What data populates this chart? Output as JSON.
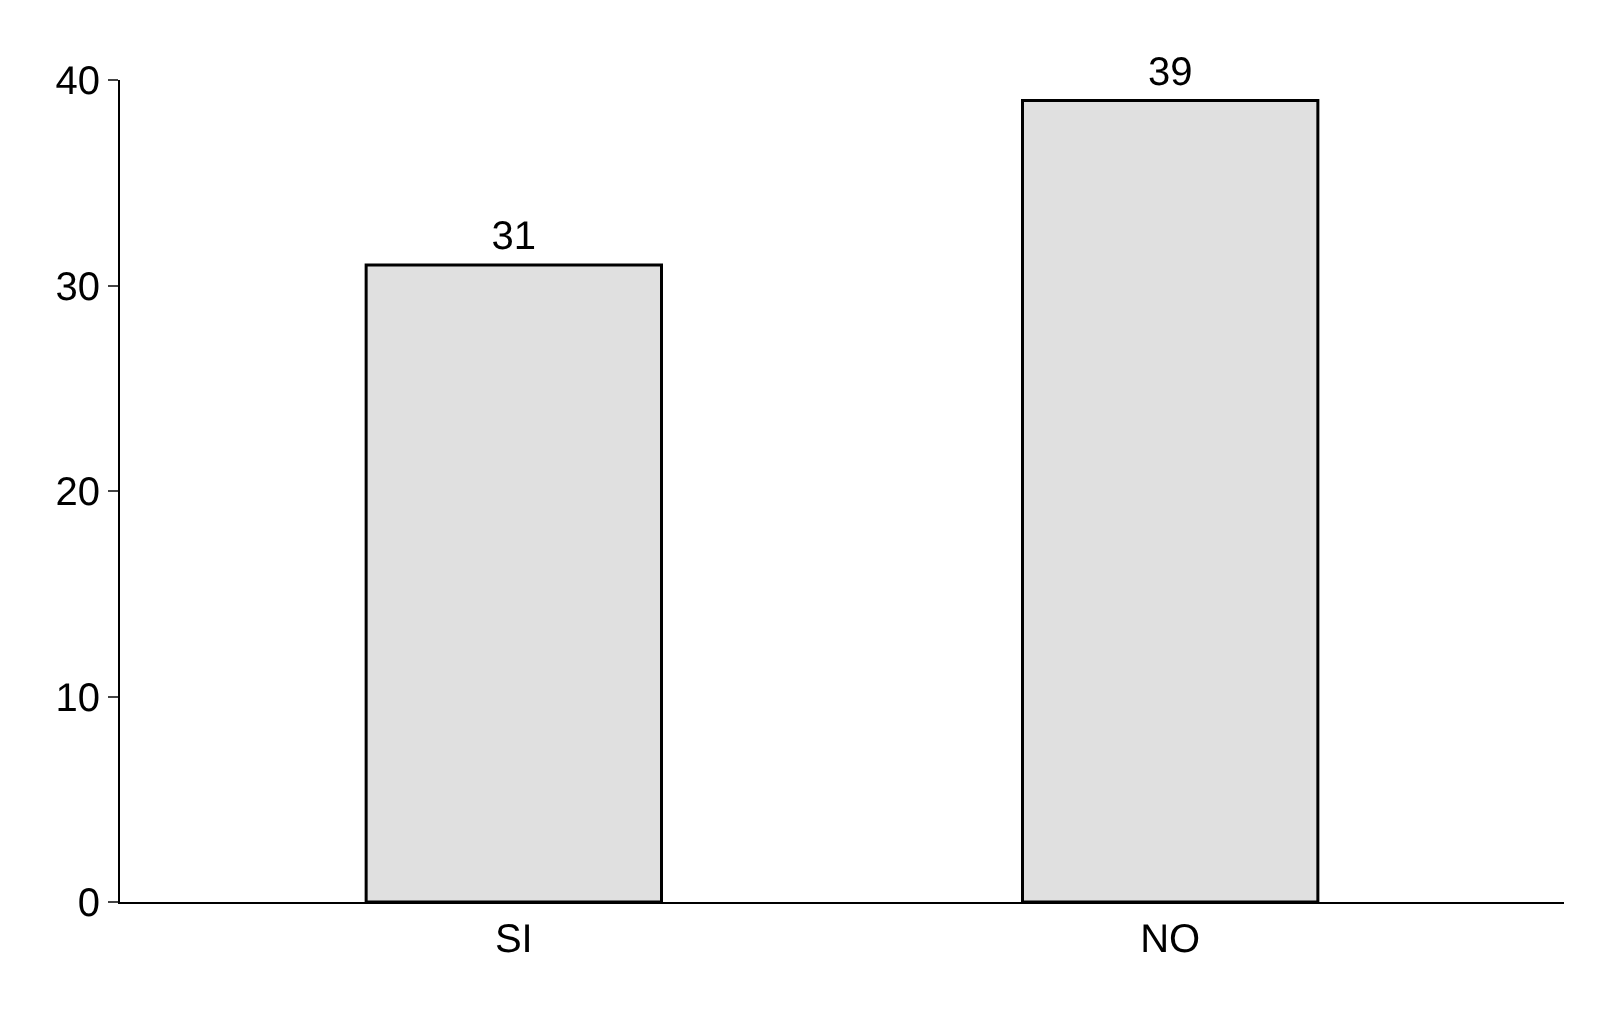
{
  "chart_data": {
    "type": "bar",
    "categories": [
      "SI",
      "NO"
    ],
    "values": [
      31,
      39
    ],
    "color": "#e0e0e0",
    "ylim": [
      0,
      40
    ],
    "yticks": [
      0,
      10,
      20,
      30,
      40
    ],
    "data_labels": true
  }
}
